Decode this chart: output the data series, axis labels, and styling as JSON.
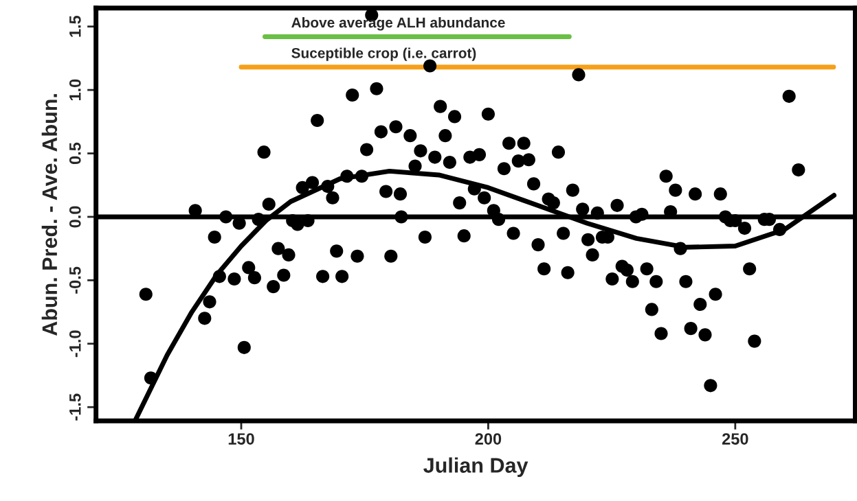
{
  "chart_data": {
    "type": "scatter",
    "xlabel": "Julian Day",
    "ylabel": "Abun. Pred. - Ave. Abun.",
    "xlim": [
      120.6,
      274.3
    ],
    "ylim": [
      -1.608,
      1.646
    ],
    "xticks": [
      150,
      200,
      250
    ],
    "yticks": [
      -1.5,
      {
        "value": -1.0,
        "label": "-1.0"
      },
      -0.5,
      {
        "value": 0.0,
        "label": "0.0"
      },
      0.5,
      {
        "value": 1.0,
        "label": "1.0"
      },
      1.5
    ],
    "grid": false,
    "legend": false,
    "marker": "circle",
    "ref_lines": [
      {
        "axis": "y",
        "value": 0,
        "color": "#000000"
      }
    ],
    "series": [
      {
        "color": "#000000",
        "x": [
          130.7,
          131.7,
          140.7,
          144.6,
          142.6,
          143.6,
          145.6,
          146.9,
          148.6,
          149.6,
          150.6,
          151.5,
          152.7,
          153.5,
          154.6,
          155.6,
          156.5,
          157.5,
          158.6,
          159.6,
          160.4,
          161.4,
          162.4,
          163.5,
          164.4,
          165.4,
          166.5,
          167.5,
          168.5,
          169.3,
          170.4,
          171.4,
          172.5,
          173.5,
          174.4,
          175.4,
          176.4,
          177.4,
          178.3,
          179.3,
          180.3,
          181.3,
          182.2,
          182.4,
          184.2,
          185.2,
          186.3,
          187.2,
          188.2,
          189.2,
          190.3,
          191.3,
          192.2,
          193.2,
          194.2,
          195.1,
          196.3,
          197.2,
          198.2,
          199.2,
          200.0,
          201.1,
          202.1,
          203.2,
          204.2,
          205.1,
          206.1,
          207.2,
          208.2,
          209.2,
          210.1,
          211.3,
          212.2,
          213.2,
          214.2,
          215.2,
          216.1,
          217.1,
          218.3,
          219.1,
          220.2,
          221.1,
          222.1,
          223.1,
          224.2,
          225.1,
          226.1,
          227.1,
          228.1,
          229.2,
          229.9,
          231.1,
          232.1,
          233.1,
          234.0,
          235.0,
          236.0,
          236.9,
          237.9,
          238.9,
          240.0,
          241.0,
          241.9,
          242.9,
          243.9,
          245.0,
          246.0,
          247.0,
          248.0,
          249.0,
          250.0,
          251.9,
          252.9,
          253.9,
          255.9,
          256.9,
          259.0,
          260.9,
          262.8
        ],
        "values": [
          -0.61,
          -1.27,
          0.05,
          -0.16,
          -0.8,
          -0.67,
          -0.47,
          0.0,
          -0.49,
          -0.05,
          -1.03,
          -0.4,
          -0.48,
          -0.02,
          0.51,
          0.1,
          -0.55,
          -0.25,
          -0.46,
          -0.3,
          -0.03,
          -0.06,
          0.23,
          -0.03,
          0.27,
          0.76,
          -0.47,
          0.24,
          0.15,
          -0.27,
          -0.47,
          0.32,
          0.96,
          -0.31,
          0.32,
          0.53,
          1.59,
          1.01,
          0.67,
          0.2,
          -0.31,
          0.71,
          0.18,
          0.0,
          0.64,
          0.4,
          0.52,
          -0.16,
          1.19,
          0.47,
          0.87,
          0.64,
          0.43,
          0.79,
          0.11,
          -0.15,
          0.47,
          0.22,
          0.49,
          0.15,
          0.81,
          0.05,
          -0.02,
          0.38,
          0.58,
          -0.13,
          0.44,
          0.58,
          0.45,
          0.26,
          -0.22,
          -0.41,
          0.14,
          0.11,
          0.51,
          -0.13,
          -0.44,
          0.21,
          1.12,
          0.06,
          -0.18,
          -0.3,
          0.03,
          -0.16,
          -0.16,
          -0.49,
          0.09,
          -0.39,
          -0.42,
          -0.51,
          0.0,
          0.02,
          -0.41,
          -0.73,
          -0.51,
          -0.92,
          0.32,
          0.04,
          0.21,
          -0.25,
          -0.51,
          -0.88,
          0.18,
          -0.69,
          -0.93,
          -1.33,
          -0.61,
          0.18,
          0.0,
          -0.03,
          -0.03,
          -0.09,
          -0.41,
          -0.98,
          -0.02,
          -0.02,
          -0.1,
          0.95,
          0.37
        ]
      },
      {
        "type": "line",
        "color": "#000000",
        "marker": "none",
        "x": [
          128.6,
          135,
          140,
          145,
          150,
          155,
          160,
          170,
          180,
          190,
          200,
          210,
          220,
          230,
          240,
          250,
          260,
          270
        ],
        "values": [
          -1.6,
          -1.09,
          -0.75,
          -0.46,
          -0.23,
          -0.03,
          0.12,
          0.3,
          0.36,
          0.33,
          0.23,
          0.09,
          -0.05,
          -0.17,
          -0.24,
          -0.23,
          -0.1,
          0.17
        ]
      },
      {
        "type": "line",
        "name": "Above average ALH abundance",
        "color": "#6abf45",
        "marker": "none",
        "x": [
          154.8,
          216.4
        ],
        "values": [
          1.42,
          1.42
        ]
      },
      {
        "type": "line",
        "name": "Suceptible crop (i.e. carrot)",
        "color": "#f6a01a",
        "marker": "none",
        "x": [
          150.0,
          269.9
        ],
        "values": [
          1.18,
          1.18
        ]
      }
    ]
  }
}
